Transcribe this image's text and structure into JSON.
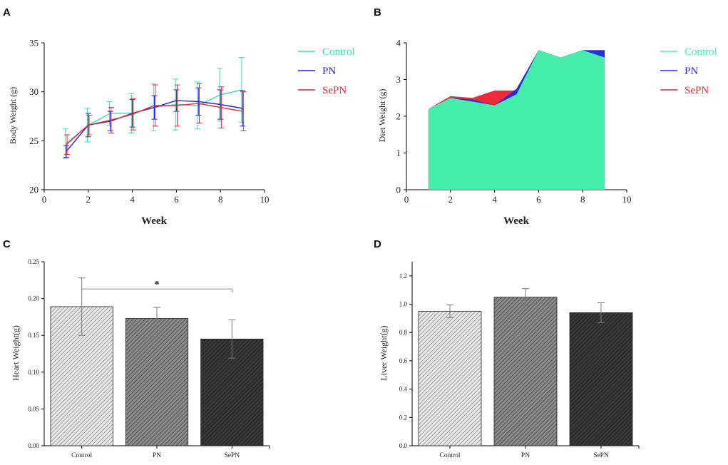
{
  "chart_data": [
    {
      "panel": "A",
      "type": "line",
      "xlabel": "Week",
      "ylabel": "Body Weight (g)",
      "xlim": [
        0,
        10
      ],
      "ylim": [
        20,
        35
      ],
      "xticks": [
        0,
        2,
        4,
        6,
        8,
        10
      ],
      "yticks": [
        20,
        25,
        30,
        35
      ],
      "x": [
        1,
        2,
        3,
        4,
        5,
        6,
        7,
        8,
        9
      ],
      "legend": "top-right",
      "series": [
        {
          "name": "Control",
          "color": "#40d9b3",
          "values": [
            24.7,
            26.6,
            27.8,
            27.8,
            28.4,
            28.7,
            28.6,
            29.7,
            30.2
          ],
          "errors": [
            1.5,
            1.7,
            1.2,
            2.0,
            2.4,
            2.6,
            2.4,
            2.7,
            3.3
          ]
        },
        {
          "name": "PN",
          "color": "#2323dd",
          "values": [
            23.9,
            26.6,
            27.0,
            27.8,
            28.4,
            29.1,
            29.0,
            28.7,
            28.3
          ],
          "errors": [
            0.6,
            1.2,
            1.0,
            1.4,
            1.2,
            1.1,
            1.4,
            1.5,
            1.8
          ]
        },
        {
          "name": "SePN",
          "color": "#e8253a",
          "values": [
            24.6,
            26.6,
            27.1,
            27.7,
            28.6,
            28.6,
            28.8,
            28.4,
            28.0
          ],
          "errors": [
            1.0,
            1.0,
            1.3,
            1.6,
            2.1,
            2.1,
            2.0,
            2.1,
            2.0
          ]
        }
      ]
    },
    {
      "panel": "B",
      "type": "area",
      "xlabel": "Week",
      "ylabel": "Diet Weight (g)",
      "xlim": [
        0,
        10
      ],
      "ylim": [
        0,
        4
      ],
      "xticks": [
        0,
        2,
        4,
        6,
        8,
        10
      ],
      "yticks": [
        0,
        1,
        2,
        3,
        4
      ],
      "x": [
        1,
        2,
        3,
        4,
        5,
        6,
        7,
        8,
        9
      ],
      "legend": "top-right",
      "series": [
        {
          "name": "Control",
          "color": "#44edaa",
          "values": [
            2.2,
            2.5,
            2.4,
            2.3,
            2.6,
            3.8,
            3.6,
            3.8,
            3.6
          ]
        },
        {
          "name": "PN",
          "color": "#2b2bd8",
          "values": [
            2.2,
            2.5,
            2.45,
            2.3,
            2.75,
            3.8,
            3.6,
            3.8,
            3.8
          ]
        },
        {
          "name": "SePN",
          "color": "#ee2a3c",
          "values": [
            2.2,
            2.55,
            2.5,
            2.7,
            2.7,
            3.8,
            3.6,
            3.8,
            3.6
          ]
        }
      ]
    },
    {
      "panel": "C",
      "type": "bar",
      "xlabel": "",
      "ylabel": "Heart Weight(g)",
      "ylim": [
        0,
        0.25
      ],
      "yticks": [
        "0.00",
        "0.05",
        "0.10",
        "0.15",
        "0.20",
        "0.25"
      ],
      "categories": [
        "Control",
        "PN",
        "SePN"
      ],
      "values": [
        0.189,
        0.173,
        0.145
      ],
      "errors": [
        0.039,
        0.015,
        0.026
      ],
      "annotation": {
        "text": "*",
        "between": [
          "Control",
          "SePN"
        ],
        "level": 0.213
      }
    },
    {
      "panel": "D",
      "type": "bar",
      "xlabel": "",
      "ylabel": "Liver Weight(g)",
      "ylim": [
        0,
        1.3
      ],
      "yticks": [
        "0.0",
        "0.2",
        "0.4",
        "0.6",
        "0.8",
        "1.0",
        "1.2"
      ],
      "categories": [
        "Control",
        "PN",
        "SePN"
      ],
      "values": [
        0.95,
        1.05,
        0.94
      ],
      "errors": [
        0.045,
        0.06,
        0.07
      ]
    }
  ]
}
